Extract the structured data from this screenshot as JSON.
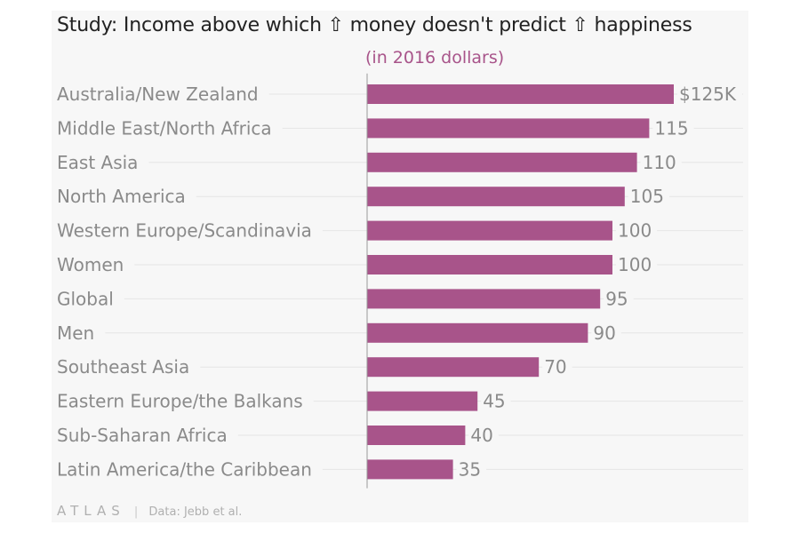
{
  "title": "Study: Income above which ⇧ money doesn't predict ⇧ happiness",
  "subtitle": "(in 2016 dollars)",
  "footer": {
    "logo": "ATLAS",
    "separator": "|",
    "source": "Data: Jebb et al."
  },
  "colors": {
    "bar": "#a8548a",
    "label": "#8a8a8a",
    "value": "#8a8a8a",
    "axis": "#999999",
    "grid": "#e6e6e6"
  },
  "chart_data": {
    "type": "bar",
    "orientation": "horizontal",
    "title": "Study: Income above which ⇧ money doesn't predict ⇧ happiness",
    "subtitle": "(in 2016 dollars)",
    "unit": "thousand 2016 dollars",
    "categories": [
      "Australia/New Zealand",
      "Middle East/North Africa",
      "East Asia",
      "North America",
      "Western Europe/Scandinavia",
      "Women",
      "Global",
      "Men",
      "Southeast Asia",
      "Eastern Europe/the Balkans",
      "Sub-Saharan Africa",
      "Latin America/the Caribbean"
    ],
    "values": [
      125,
      115,
      110,
      105,
      100,
      100,
      95,
      90,
      70,
      45,
      40,
      35
    ],
    "value_labels": [
      "$125K",
      "115",
      "110",
      "105",
      "100",
      "100",
      "95",
      "90",
      "70",
      "45",
      "40",
      "35"
    ],
    "xlim": [
      0,
      125
    ],
    "grid": true
  }
}
